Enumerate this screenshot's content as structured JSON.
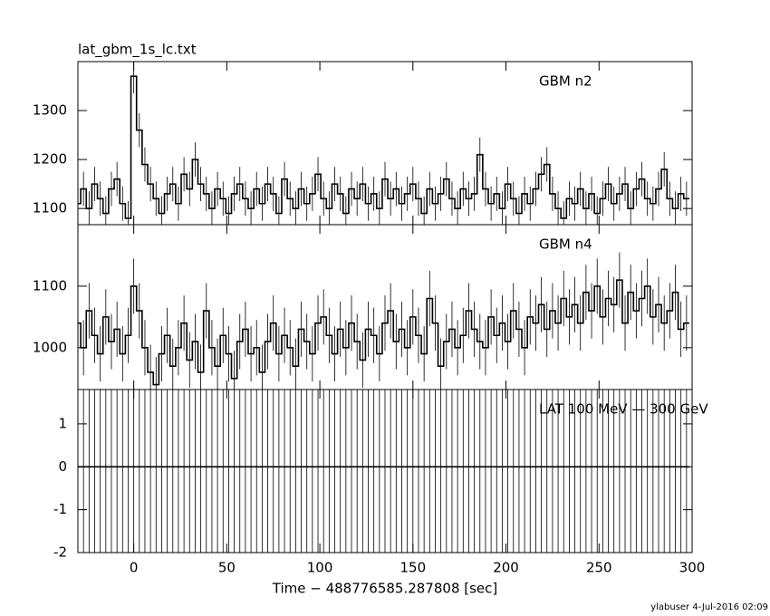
{
  "chart_data": [
    {
      "type": "line",
      "title": "lat_gbm_1s_lc.txt",
      "label": "GBM n2",
      "ylim": [
        1067,
        1400
      ],
      "yticks": [
        1100,
        1200,
        1300
      ],
      "error": 35,
      "x": [
        -30,
        -27,
        -24,
        -21,
        -18,
        -15,
        -12,
        -9,
        -6,
        -3,
        0,
        3,
        6,
        9,
        12,
        15,
        18,
        21,
        24,
        27,
        30,
        33,
        36,
        39,
        42,
        45,
        48,
        51,
        54,
        57,
        60,
        63,
        66,
        69,
        72,
        75,
        78,
        81,
        84,
        87,
        90,
        93,
        96,
        99,
        102,
        105,
        108,
        111,
        114,
        117,
        120,
        123,
        126,
        129,
        132,
        135,
        138,
        141,
        144,
        147,
        150,
        153,
        156,
        159,
        162,
        165,
        168,
        171,
        174,
        177,
        180,
        183,
        186,
        189,
        192,
        195,
        198,
        201,
        204,
        207,
        210,
        213,
        216,
        219,
        222,
        225,
        228,
        231,
        234,
        237,
        240,
        243,
        246,
        249,
        252,
        255,
        258,
        261,
        264,
        267,
        270,
        273,
        276,
        279,
        282,
        285,
        288,
        291,
        294,
        297
      ],
      "values": [
        1110,
        1140,
        1100,
        1150,
        1120,
        1090,
        1140,
        1160,
        1110,
        1080,
        1370,
        1260,
        1190,
        1150,
        1120,
        1090,
        1130,
        1150,
        1110,
        1170,
        1140,
        1200,
        1150,
        1130,
        1100,
        1140,
        1120,
        1090,
        1130,
        1150,
        1120,
        1100,
        1140,
        1110,
        1150,
        1130,
        1090,
        1160,
        1120,
        1100,
        1140,
        1110,
        1130,
        1170,
        1120,
        1100,
        1150,
        1130,
        1090,
        1140,
        1120,
        1150,
        1110,
        1130,
        1100,
        1160,
        1120,
        1140,
        1110,
        1130,
        1150,
        1120,
        1090,
        1140,
        1110,
        1130,
        1160,
        1120,
        1100,
        1140,
        1120,
        1130,
        1210,
        1140,
        1110,
        1130,
        1100,
        1150,
        1120,
        1090,
        1130,
        1110,
        1140,
        1170,
        1190,
        1130,
        1100,
        1080,
        1120,
        1110,
        1140,
        1100,
        1130,
        1090,
        1120,
        1150,
        1110,
        1130,
        1150,
        1100,
        1140,
        1160,
        1120,
        1110,
        1140,
        1180,
        1120,
        1100,
        1130,
        1120
      ]
    },
    {
      "type": "line",
      "label": "GBM n4",
      "ylim": [
        932,
        1200
      ],
      "yticks": [
        1000,
        1100
      ],
      "error": 45,
      "x": [
        -30,
        -27,
        -24,
        -21,
        -18,
        -15,
        -12,
        -9,
        -6,
        -3,
        0,
        3,
        6,
        9,
        12,
        15,
        18,
        21,
        24,
        27,
        30,
        33,
        36,
        39,
        42,
        45,
        48,
        51,
        54,
        57,
        60,
        63,
        66,
        69,
        72,
        75,
        78,
        81,
        84,
        87,
        90,
        93,
        96,
        99,
        102,
        105,
        108,
        111,
        114,
        117,
        120,
        123,
        126,
        129,
        132,
        135,
        138,
        141,
        144,
        147,
        150,
        153,
        156,
        159,
        162,
        165,
        168,
        171,
        174,
        177,
        180,
        183,
        186,
        189,
        192,
        195,
        198,
        201,
        204,
        207,
        210,
        213,
        216,
        219,
        222,
        225,
        228,
        231,
        234,
        237,
        240,
        243,
        246,
        249,
        252,
        255,
        258,
        261,
        264,
        267,
        270,
        273,
        276,
        279,
        282,
        285,
        288,
        291,
        294,
        297
      ],
      "values": [
        1040,
        1000,
        1060,
        1020,
        990,
        1050,
        1010,
        1030,
        990,
        1020,
        1100,
        1060,
        1000,
        960,
        940,
        990,
        1020,
        970,
        1000,
        1040,
        980,
        1010,
        960,
        1060,
        1000,
        970,
        1020,
        990,
        950,
        1010,
        1030,
        990,
        1000,
        960,
        1010,
        1040,
        990,
        1020,
        1000,
        970,
        1030,
        1010,
        990,
        1040,
        1050,
        1020,
        990,
        1030,
        1000,
        1040,
        1010,
        980,
        1030,
        1020,
        990,
        1040,
        1060,
        1010,
        1030,
        1000,
        1050,
        1020,
        990,
        1080,
        1040,
        970,
        1010,
        1030,
        1000,
        1020,
        1060,
        1030,
        1010,
        1000,
        1050,
        1020,
        1040,
        1010,
        1060,
        1030,
        1000,
        1050,
        1040,
        1070,
        1030,
        1060,
        1040,
        1080,
        1050,
        1070,
        1040,
        1090,
        1060,
        1100,
        1050,
        1080,
        1070,
        1110,
        1040,
        1090,
        1060,
        1080,
        1100,
        1050,
        1070,
        1040,
        1060,
        1090,
        1030,
        1040
      ]
    },
    {
      "type": "line",
      "label": "LAT 100 MeV — 300 GeV",
      "ylim": [
        -2,
        1.8
      ],
      "yticks": [
        -2,
        -1,
        0,
        1
      ],
      "error": 2.5,
      "xlim": [
        -30,
        300
      ],
      "xticks": [
        0,
        50,
        100,
        150,
        200,
        250,
        300
      ],
      "xlabel": "Time − 488776585.287808 [sec]",
      "x": [
        -30,
        -27,
        -24,
        -21,
        -18,
        -15,
        -12,
        -9,
        -6,
        -3,
        0,
        3,
        6,
        9,
        12,
        15,
        18,
        21,
        24,
        27,
        30,
        33,
        36,
        39,
        42,
        45,
        48,
        51,
        54,
        57,
        60,
        63,
        66,
        69,
        72,
        75,
        78,
        81,
        84,
        87,
        90,
        93,
        96,
        99,
        102,
        105,
        108,
        111,
        114,
        117,
        120,
        123,
        126,
        129,
        132,
        135,
        138,
        141,
        144,
        147,
        150,
        153,
        156,
        159,
        162,
        165,
        168,
        171,
        174,
        177,
        180,
        183,
        186,
        189,
        192,
        195,
        198,
        201,
        204,
        207,
        210,
        213,
        216,
        219,
        222,
        225,
        228,
        231,
        234,
        237,
        240,
        243,
        246,
        249,
        252,
        255,
        258,
        261,
        264,
        267,
        270,
        273,
        276,
        279,
        282,
        285,
        288,
        291,
        294,
        297
      ],
      "values": [
        0,
        0,
        0,
        0,
        0,
        0,
        0,
        0,
        0,
        0,
        0,
        0,
        0,
        0,
        0,
        0,
        0,
        0,
        0,
        0,
        0,
        0,
        0,
        0,
        0,
        0,
        0,
        0,
        0,
        0,
        0,
        0,
        0,
        0,
        0,
        0,
        0,
        0,
        0,
        0,
        0,
        0,
        0,
        0,
        0,
        0,
        0,
        0,
        0,
        0,
        0,
        0,
        0,
        0,
        0,
        0,
        0,
        0,
        0,
        0,
        0,
        0,
        0,
        0,
        0,
        0,
        0,
        0,
        0,
        0,
        0,
        0,
        0,
        0,
        0,
        0,
        0,
        0,
        0,
        0,
        0,
        0,
        0,
        0,
        0,
        0,
        0,
        0,
        0,
        0,
        0,
        0,
        0,
        0,
        0,
        0,
        0,
        0,
        0,
        0,
        0,
        0,
        0,
        0,
        0,
        0,
        0,
        0,
        0,
        0
      ]
    }
  ],
  "footer": "ylabuser  4-Jul-2016 02:09"
}
